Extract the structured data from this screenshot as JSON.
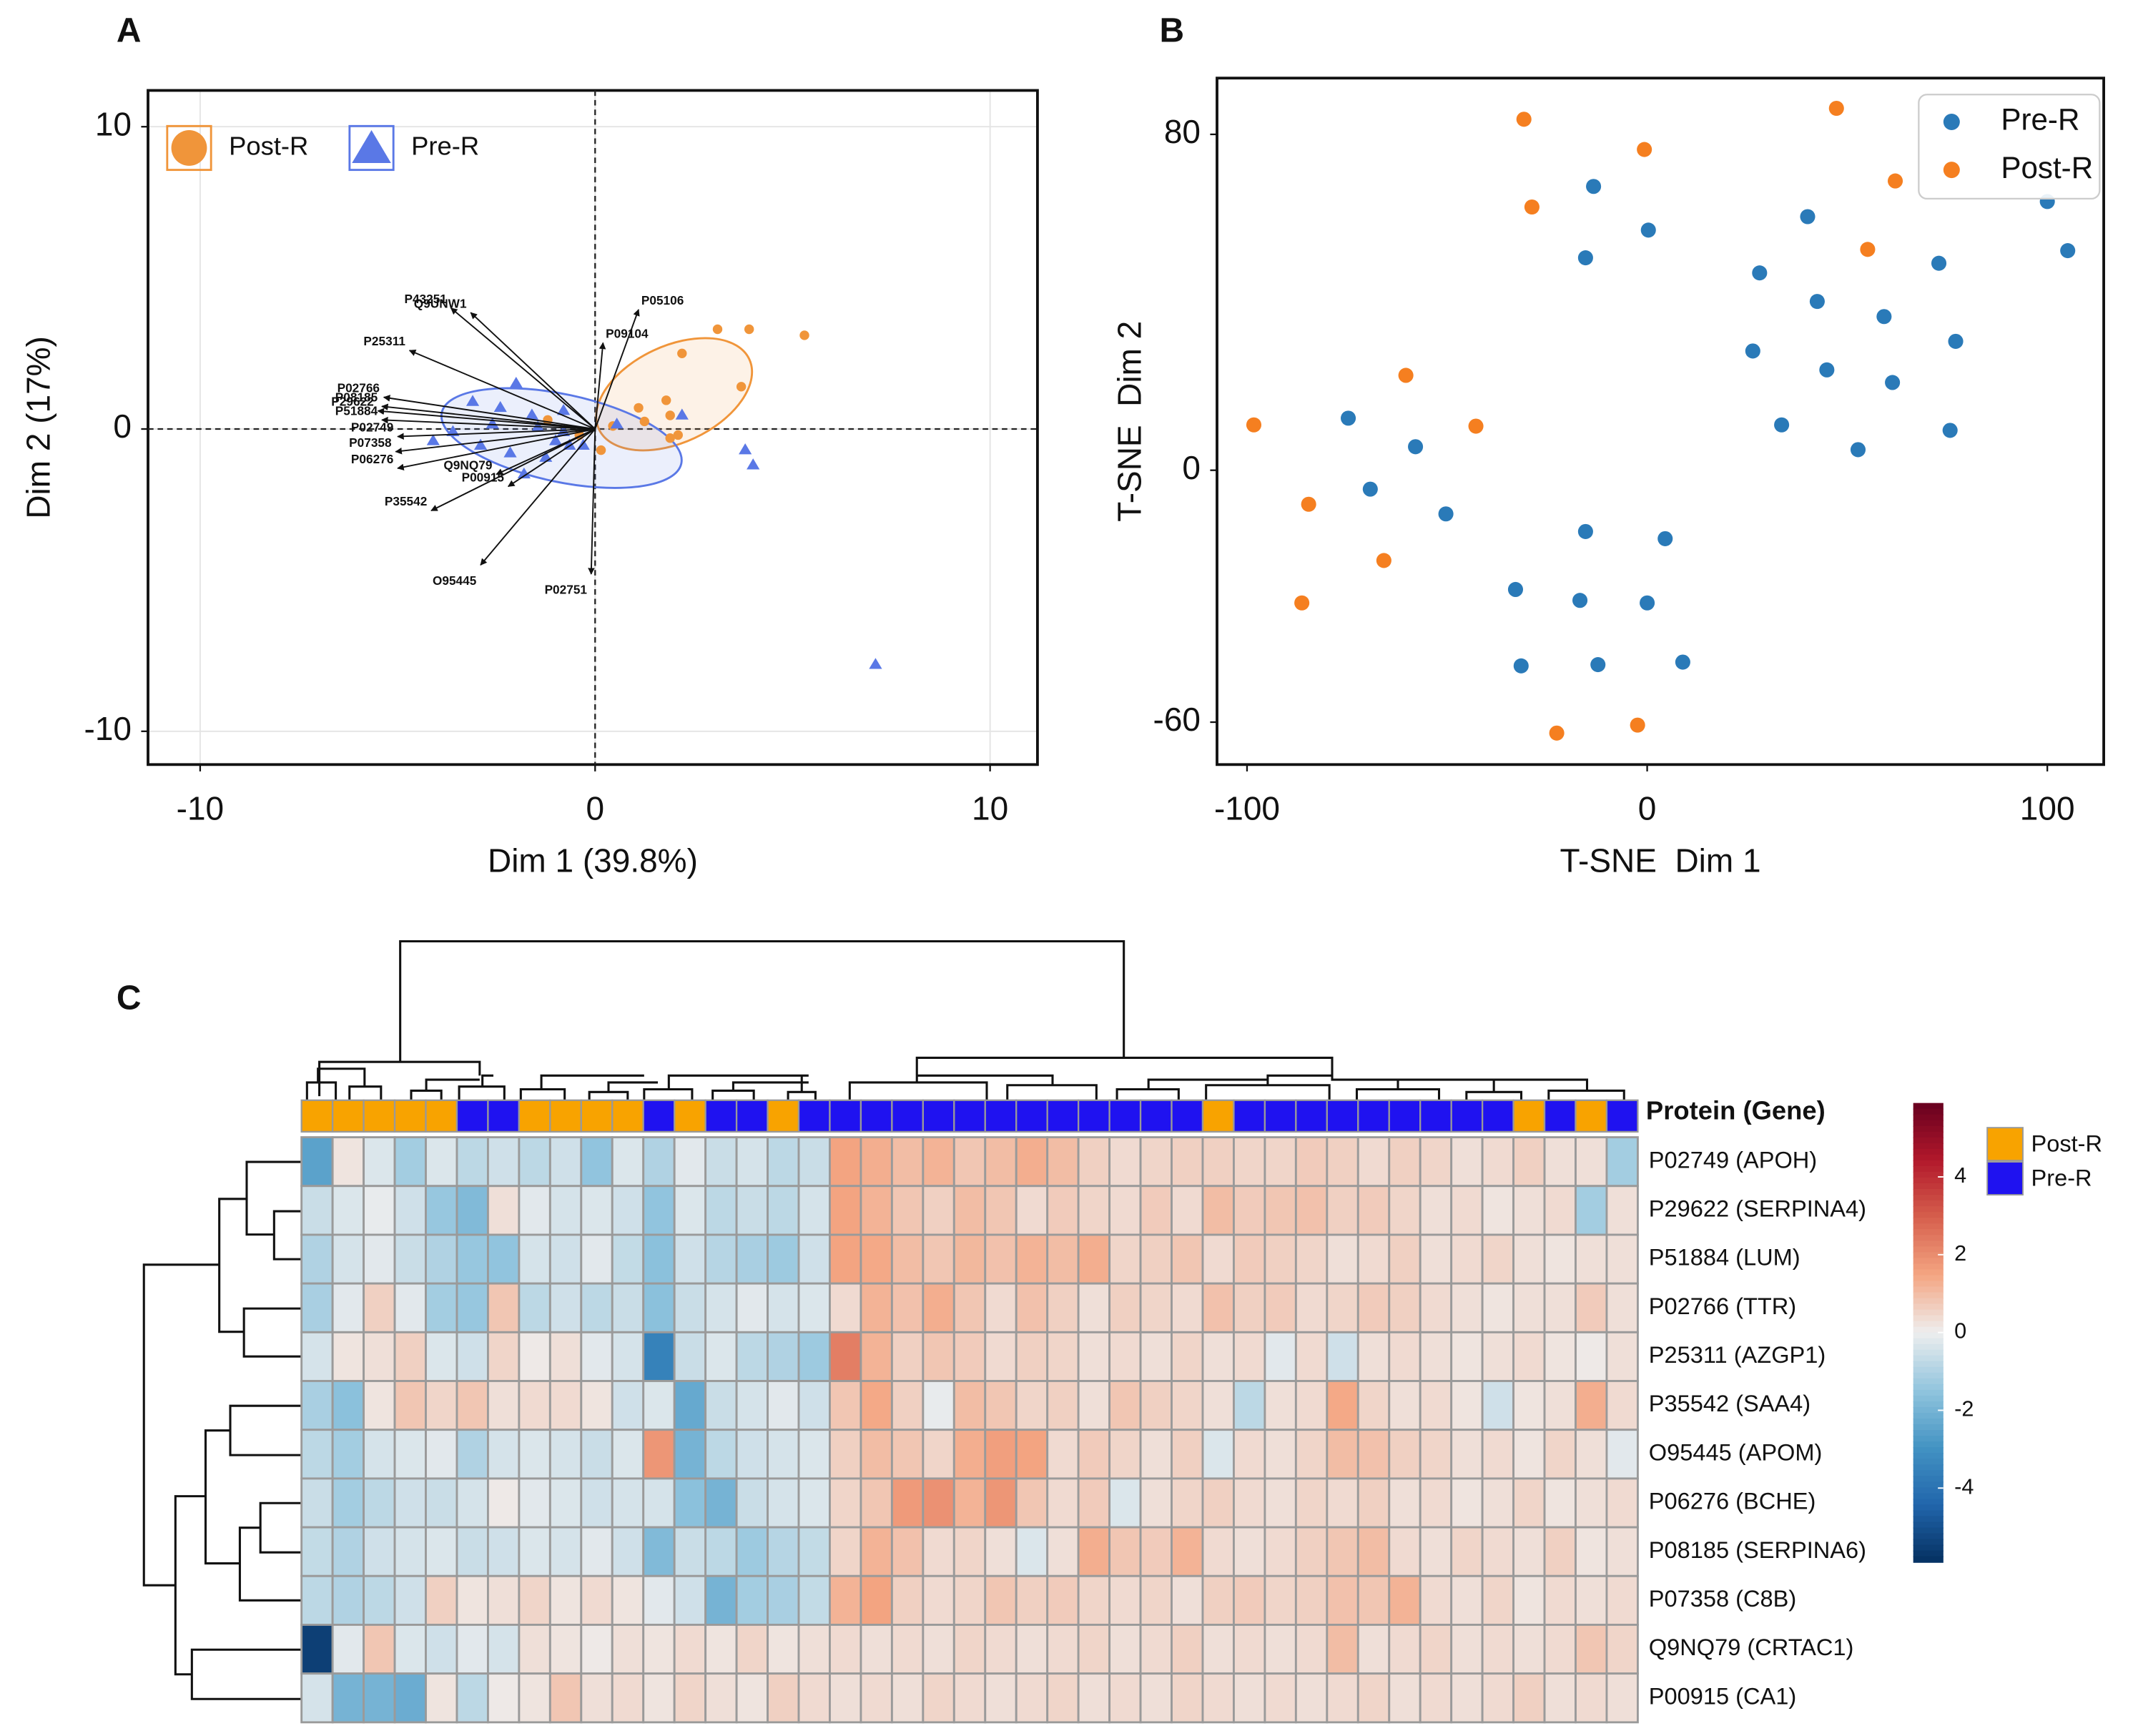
{
  "chart_data": [
    {
      "panel": "A",
      "type": "biplot",
      "xlabel": "Dim 1 (39.8%)",
      "ylabel": "Dim 2 (17%)",
      "xlim": [
        -11.32,
        11.2
      ],
      "ylim": [
        -11.1,
        11.2
      ],
      "xticks": [
        -10,
        0,
        10
      ],
      "yticks": [
        -10,
        0,
        10
      ],
      "grid": true,
      "legend": "upper left",
      "series": [
        {
          "name": "Post-R",
          "marker": "circle",
          "color": "#f0953a",
          "x": [
            3.1,
            3.9,
            5.3,
            2.2,
            3.7,
            1.8,
            1.1,
            1.25,
            1.9,
            2.1,
            1.9,
            0.15,
            0.45,
            -1.2,
            -0.4
          ],
          "y": [
            3.3,
            3.3,
            3.1,
            2.5,
            1.4,
            0.95,
            0.7,
            0.25,
            0.45,
            -0.2,
            -0.3,
            -0.7,
            0.1,
            0.3,
            -0.2
          ],
          "ellipse": {
            "cx": 2.0,
            "cy": 1.15,
            "rx": 2.1,
            "ry": 1.6,
            "angle": -25
          }
        },
        {
          "name": "Pre-R",
          "marker": "triangle",
          "color": "#5a78e6",
          "x": [
            -2.0,
            -3.1,
            -2.4,
            -0.8,
            -1.6,
            -1.45,
            -1.0,
            -0.65,
            -3.6,
            -4.1,
            -2.9,
            -2.15,
            -1.25,
            -1.8,
            2.2,
            3.8,
            4.0,
            7.1,
            -0.3,
            0.55,
            -2.6,
            -0.8
          ],
          "y": [
            1.5,
            0.9,
            0.7,
            0.6,
            0.45,
            0.05,
            -0.4,
            -0.55,
            -0.1,
            -0.4,
            -0.55,
            -0.8,
            -0.95,
            -1.5,
            0.45,
            -0.7,
            -1.2,
            -7.8,
            -0.55,
            0.15,
            0.15,
            -0.1
          ],
          "ellipse": {
            "cx": -0.85,
            "cy": -0.3,
            "rx": 3.1,
            "ry": 1.45,
            "angle": 12
          }
        }
      ],
      "arrows": [
        {
          "label": "P43251",
          "x": -3.65,
          "y": 4.0
        },
        {
          "label": "Q9UNW1",
          "x": -3.15,
          "y": 3.85
        },
        {
          "label": "P25311",
          "x": -4.7,
          "y": 2.6
        },
        {
          "label": "P02766",
          "x": -5.35,
          "y": 1.05
        },
        {
          "label": "P08185",
          "x": -5.4,
          "y": 0.75
        },
        {
          "label": "P29622",
          "x": -5.5,
          "y": 0.6
        },
        {
          "label": "P51884",
          "x": -5.4,
          "y": 0.3
        },
        {
          "label": "P02749",
          "x": -5.0,
          "y": -0.25
        },
        {
          "label": "P07358",
          "x": -5.05,
          "y": -0.75
        },
        {
          "label": "P06276",
          "x": -5.0,
          "y": -1.3
        },
        {
          "label": "Q9NQ79",
          "x": -2.5,
          "y": -1.5
        },
        {
          "label": "P00915",
          "x": -2.2,
          "y": -1.9
        },
        {
          "label": "P35542",
          "x": -4.15,
          "y": -2.7
        },
        {
          "label": "O95445",
          "x": -2.9,
          "y": -4.5
        },
        {
          "label": "P02751",
          "x": -0.1,
          "y": -4.8
        },
        {
          "label": "P09104",
          "x": 0.2,
          "y": 2.85
        },
        {
          "label": "P05106",
          "x": 1.1,
          "y": 3.95
        }
      ]
    },
    {
      "panel": "B",
      "type": "scatter",
      "xlabel": "T-SNE  Dim 1",
      "ylabel": "T-SNE  Dim 2",
      "xlim": [
        -107.5,
        114.1
      ],
      "ylim": [
        -70.1,
        93.4
      ],
      "xticks": [
        -100,
        0,
        100
      ],
      "yticks": [
        -60,
        0,
        80
      ],
      "legend": "upper right",
      "series": [
        {
          "name": "Pre-R",
          "color": "#2a7ab8",
          "x": [
            -13.4,
            0.3,
            -15.4,
            40.1,
            28.1,
            72.9,
            100.0,
            105.1,
            42.5,
            59.2,
            26.4,
            44.9,
            61.3,
            77.1,
            33.6,
            52.7,
            75.7,
            -74.7,
            -57.9,
            -69.2,
            -50.3,
            -15.4,
            4.5,
            -32.9,
            -16.8,
            0,
            -31.5,
            -12.3,
            8.9
          ],
          "y": [
            67.6,
            57.2,
            50.6,
            60.4,
            47.0,
            49.3,
            64.0,
            52.3,
            40.2,
            36.6,
            28.4,
            23.9,
            20.9,
            30.7,
            10.8,
            4.9,
            9.5,
            12.4,
            5.6,
            -4.5,
            -10.4,
            -14.6,
            -16.3,
            -28.4,
            -31.0,
            -31.6,
            -46.6,
            -46.3,
            -45.7
          ]
        },
        {
          "name": "Post-R",
          "color": "#f57f20",
          "x": [
            -30.8,
            47.3,
            -0.7,
            -28.8,
            62.0,
            55.1,
            -60.3,
            -42.8,
            -98.3,
            -84.6,
            -65.8,
            -86.3,
            -2.4,
            -22.6
          ],
          "y": [
            83.6,
            86.2,
            76.4,
            62.7,
            68.9,
            52.6,
            22.6,
            10.5,
            10.8,
            -8.1,
            -21.5,
            -31.6,
            -60.7,
            -62.6
          ]
        }
      ]
    },
    {
      "panel": "C",
      "type": "heatmap",
      "row_title": "Protein (Gene)",
      "rows": [
        "P02749 (APOH)",
        "P29622 (SERPINA4)",
        "P51884 (LUM)",
        "P02766 (TTR)",
        "P25311 (AZGP1)",
        "P35542 (SAA4)",
        "O95445 (APOM)",
        "P06276 (BCHE)",
        "P08185 (SERPINA6)",
        "P07358 (C8B)",
        "Q9NQ79 (CRTAC1)",
        "P00915 (CA1)"
      ],
      "groups": [
        {
          "name": "Post-R",
          "color": "#f8a300"
        },
        {
          "name": "Pre-R",
          "color": "#1f12f0"
        }
      ],
      "column_groups": [
        "Post-R",
        "Post-R",
        "Post-R",
        "Post-R",
        "Post-R",
        "Pre-R",
        "Pre-R",
        "Post-R",
        "Post-R",
        "Post-R",
        "Post-R",
        "Pre-R",
        "Post-R",
        "Pre-R",
        "Pre-R",
        "Post-R",
        "Pre-R",
        "Pre-R",
        "Pre-R",
        "Pre-R",
        "Pre-R",
        "Pre-R",
        "Pre-R",
        "Pre-R",
        "Pre-R",
        "Pre-R",
        "Pre-R",
        "Pre-R",
        "Pre-R",
        "Post-R",
        "Pre-R",
        "Pre-R",
        "Pre-R",
        "Pre-R",
        "Pre-R",
        "Pre-R",
        "Pre-R",
        "Pre-R",
        "Pre-R",
        "Post-R",
        "Pre-R",
        "Post-R",
        "Pre-R"
      ],
      "zlim": [
        -5.9,
        5.9
      ],
      "zticks": [
        -4,
        -2,
        0,
        2,
        4
      ],
      "colormap": [
        "#053061",
        "#2166ac",
        "#4393c3",
        "#92c5de",
        "#eeeeee",
        "#f4a582",
        "#d6604d",
        "#b2182b",
        "#67001f"
      ],
      "values": [
        [
          -2.5,
          0.2,
          -0.3,
          -1.2,
          -0.3,
          -0.8,
          -0.5,
          -0.8,
          -0.5,
          -1.5,
          -0.3,
          -1.0,
          -0.2,
          -0.6,
          -0.4,
          -0.8,
          -0.6,
          1.5,
          1.3,
          1.0,
          1.2,
          0.8,
          1.0,
          1.3,
          1.0,
          0.6,
          0.4,
          0.5,
          0.6,
          0.6,
          0.5,
          0.5,
          0.7,
          0.6,
          0.4,
          0.6,
          0.5,
          0.3,
          0.4,
          0.6,
          0.3,
          0.3,
          -1.2
        ],
        [
          -0.6,
          -0.3,
          -0.1,
          -0.5,
          -1.4,
          -1.8,
          0.3,
          -0.2,
          -0.4,
          -0.3,
          -0.5,
          -1.5,
          -0.3,
          -0.8,
          -0.6,
          -0.8,
          -0.4,
          1.5,
          1.2,
          0.8,
          0.6,
          1.0,
          0.8,
          0.4,
          0.7,
          0.5,
          0.4,
          0.7,
          0.4,
          1.0,
          0.7,
          0.8,
          0.9,
          0.6,
          0.7,
          0.5,
          0.3,
          0.4,
          0.2,
          0.3,
          0.4,
          -1.2,
          0.3
        ],
        [
          -1.0,
          -0.4,
          -0.2,
          -0.6,
          -1.0,
          -1.4,
          -1.5,
          -0.4,
          -0.5,
          -0.2,
          -0.7,
          -1.6,
          -0.5,
          -0.9,
          -1.1,
          -1.3,
          -0.5,
          1.5,
          1.4,
          1.0,
          0.8,
          1.1,
          0.9,
          1.2,
          1.0,
          1.3,
          0.5,
          0.6,
          0.8,
          0.4,
          0.7,
          0.6,
          0.5,
          0.3,
          0.4,
          0.6,
          0.3,
          0.4,
          0.5,
          0.3,
          0.2,
          0.3,
          0.3
        ],
        [
          -1.1,
          -0.2,
          0.6,
          -0.2,
          -1.2,
          -1.4,
          0.8,
          -0.8,
          -0.5,
          -0.8,
          -0.6,
          -1.6,
          -0.6,
          -0.4,
          -0.2,
          -0.4,
          -0.3,
          0.4,
          1.2,
          0.9,
          1.3,
          0.8,
          0.4,
          0.9,
          0.6,
          0.3,
          0.6,
          0.5,
          0.4,
          0.9,
          0.6,
          0.7,
          0.4,
          0.5,
          0.7,
          0.6,
          0.4,
          0.3,
          0.2,
          0.3,
          0.3,
          0.7,
          0.3
        ],
        [
          -0.4,
          0.2,
          0.3,
          0.6,
          -0.3,
          -0.5,
          0.5,
          0.1,
          0.3,
          -0.2,
          -0.4,
          -3.5,
          -0.6,
          -0.3,
          -0.8,
          -1.0,
          -1.3,
          2.3,
          1.2,
          0.6,
          0.8,
          0.7,
          0.4,
          0.6,
          0.5,
          0.3,
          0.4,
          0.3,
          0.5,
          0.3,
          0.4,
          -0.2,
          0.4,
          -0.5,
          0.3,
          0.4,
          0.3,
          0.2,
          0.3,
          0.4,
          0.2,
          0.1,
          0.3
        ],
        [
          -1.1,
          -1.6,
          0.2,
          0.8,
          0.5,
          0.8,
          0.3,
          0.4,
          0.4,
          0.2,
          -0.5,
          -0.3,
          -2.3,
          -0.6,
          -0.4,
          -0.2,
          -0.5,
          0.8,
          1.4,
          0.6,
          -0.1,
          1.0,
          0.8,
          0.5,
          0.6,
          0.3,
          0.8,
          0.6,
          0.5,
          0.3,
          -0.8,
          0.3,
          0.4,
          1.4,
          0.5,
          0.3,
          0.4,
          0.2,
          -0.5,
          0.2,
          0.3,
          1.3,
          0.4
        ],
        [
          -0.8,
          -1.2,
          -0.4,
          -0.3,
          -0.2,
          -1.0,
          -0.4,
          -0.3,
          -0.4,
          -0.6,
          -0.3,
          1.8,
          -2.0,
          -0.8,
          -0.5,
          -0.4,
          -0.3,
          0.6,
          1.0,
          0.8,
          0.5,
          1.3,
          1.6,
          1.5,
          0.4,
          0.7,
          0.5,
          0.3,
          0.6,
          -0.3,
          0.4,
          0.3,
          0.5,
          1.0,
          0.9,
          0.6,
          0.5,
          0.3,
          0.4,
          0.2,
          0.5,
          0.3,
          -0.2
        ],
        [
          -0.6,
          -1.2,
          -0.8,
          -0.5,
          -0.6,
          -0.4,
          0.1,
          -0.2,
          -0.3,
          -0.5,
          -0.4,
          -0.4,
          -1.6,
          -2.0,
          -0.6,
          -0.4,
          -0.3,
          0.5,
          0.8,
          1.7,
          1.9,
          1.2,
          1.8,
          0.8,
          0.4,
          0.7,
          -0.3,
          0.3,
          0.5,
          0.6,
          0.4,
          0.3,
          0.5,
          0.4,
          0.6,
          0.3,
          0.4,
          0.2,
          0.3,
          0.5,
          0.2,
          0.3,
          0.4
        ],
        [
          -0.7,
          -1.0,
          -0.5,
          -0.4,
          -0.3,
          -0.6,
          -0.5,
          -0.3,
          -0.4,
          -0.2,
          -0.5,
          -1.8,
          -0.6,
          -0.8,
          -1.3,
          -0.9,
          -0.7,
          0.5,
          1.2,
          0.9,
          0.4,
          0.5,
          0.3,
          -0.3,
          0.3,
          1.3,
          0.8,
          0.7,
          1.2,
          0.4,
          0.3,
          0.4,
          0.6,
          0.8,
          1.0,
          0.4,
          0.3,
          0.5,
          0.4,
          0.3,
          0.6,
          0.2,
          0.3
        ],
        [
          -0.8,
          -1.0,
          -0.8,
          -0.5,
          0.6,
          0.2,
          0.3,
          0.5,
          0.2,
          0.4,
          0.2,
          -0.2,
          -0.5,
          -2.0,
          -1.2,
          -1.1,
          -0.7,
          1.2,
          1.5,
          0.6,
          0.4,
          0.5,
          0.8,
          0.6,
          0.7,
          0.5,
          0.4,
          0.5,
          0.3,
          0.6,
          0.7,
          0.5,
          0.6,
          0.9,
          0.8,
          1.2,
          0.4,
          0.3,
          0.5,
          0.2,
          0.4,
          0.3,
          0.4
        ],
        [
          -5.5,
          -0.2,
          0.8,
          -0.3,
          -0.5,
          -0.2,
          -0.4,
          0.3,
          0.2,
          0.1,
          0.3,
          0.2,
          0.4,
          0.2,
          0.5,
          0.2,
          0.3,
          0.4,
          0.3,
          0.4,
          0.3,
          0.5,
          0.4,
          0.3,
          0.4,
          0.5,
          0.3,
          0.4,
          0.6,
          0.3,
          0.4,
          0.3,
          0.4,
          1.0,
          0.3,
          0.4,
          0.5,
          0.3,
          0.4,
          0.3,
          0.4,
          0.8,
          0.5
        ],
        [
          -0.4,
          -2.0,
          -2.0,
          -2.2,
          0.2,
          -0.8,
          0.1,
          0.2,
          0.8,
          0.3,
          0.4,
          0.2,
          0.5,
          0.3,
          0.2,
          0.6,
          0.4,
          0.3,
          0.4,
          0.3,
          0.5,
          0.4,
          0.3,
          0.4,
          0.5,
          0.3,
          0.4,
          0.3,
          0.5,
          0.4,
          0.3,
          0.4,
          0.3,
          0.4,
          0.5,
          0.3,
          0.4,
          0.3,
          0.4,
          0.6,
          0.3,
          0.4,
          0.3
        ]
      ]
    }
  ]
}
